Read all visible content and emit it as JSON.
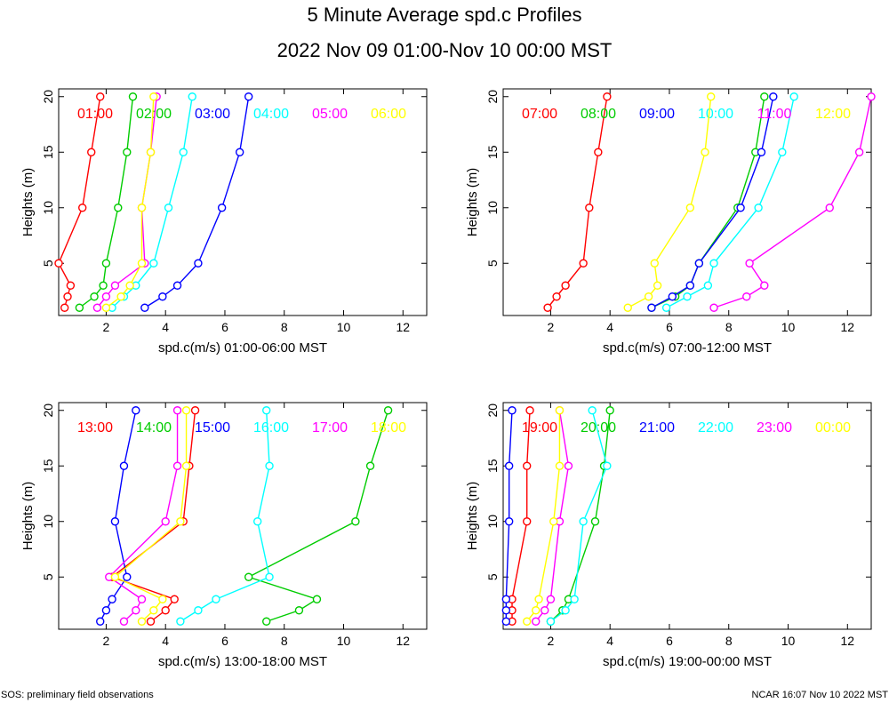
{
  "title": "5 Minute Average spd.c Profiles",
  "subtitle": "2022 Nov 09 01:00-Nov 10 00:00 MST",
  "footer_left": "SOS: preliminary field observations",
  "footer_right": "NCAR 16:07 Nov 10 2022 MST",
  "chart_data": [
    {
      "type": "line",
      "xlabel": "spd.c(m/s) 01:00-06:00 MST",
      "ylabel": "Heights (m)",
      "xlim": [
        0.4,
        12.8
      ],
      "ylim": [
        0.3,
        20.7
      ],
      "xticks": [
        2,
        4,
        6,
        8,
        10,
        12
      ],
      "yticks": [
        5,
        10,
        15,
        20
      ],
      "heights": [
        1,
        2,
        3,
        5,
        10,
        15,
        20
      ],
      "series": [
        {
          "name": "01:00",
          "color": "#ff0000",
          "values": [
            0.6,
            0.7,
            0.8,
            0.4,
            1.2,
            1.5,
            1.8
          ]
        },
        {
          "name": "02:00",
          "color": "#00cc00",
          "values": [
            1.1,
            1.6,
            1.9,
            2.0,
            2.4,
            2.7,
            2.9
          ]
        },
        {
          "name": "03:00",
          "color": "#0000ff",
          "values": [
            3.3,
            3.9,
            4.4,
            5.1,
            5.9,
            6.5,
            6.8
          ]
        },
        {
          "name": "04:00",
          "color": "#00ffff",
          "values": [
            2.2,
            2.6,
            3.0,
            3.6,
            4.1,
            4.6,
            4.9
          ]
        },
        {
          "name": "05:00",
          "color": "#ff00ff",
          "values": [
            1.7,
            2.0,
            2.3,
            3.3,
            3.2,
            3.5,
            3.7
          ]
        },
        {
          "name": "06:00",
          "color": "#ffff00",
          "values": [
            2.0,
            2.5,
            2.8,
            3.2,
            3.2,
            3.5,
            3.6
          ]
        }
      ]
    },
    {
      "type": "line",
      "xlabel": "spd.c(m/s) 07:00-12:00 MST",
      "ylabel": "Heights (m)",
      "xlim": [
        0.4,
        12.8
      ],
      "ylim": [
        0.3,
        20.7
      ],
      "xticks": [
        2,
        4,
        6,
        8,
        10,
        12
      ],
      "yticks": [
        5,
        10,
        15,
        20
      ],
      "heights": [
        1,
        2,
        3,
        5,
        10,
        15,
        20
      ],
      "series": [
        {
          "name": "07:00",
          "color": "#ff0000",
          "values": [
            1.9,
            2.2,
            2.5,
            3.1,
            3.3,
            3.6,
            3.9
          ]
        },
        {
          "name": "08:00",
          "color": "#00cc00",
          "values": [
            5.4,
            6.2,
            6.7,
            7.0,
            8.3,
            8.9,
            9.2
          ]
        },
        {
          "name": "09:00",
          "color": "#0000ff",
          "values": [
            5.4,
            6.1,
            6.7,
            7.0,
            8.4,
            9.1,
            9.5
          ]
        },
        {
          "name": "10:00",
          "color": "#00ffff",
          "values": [
            5.9,
            6.6,
            7.3,
            7.5,
            9.0,
            9.8,
            10.2
          ]
        },
        {
          "name": "11:00",
          "color": "#ff00ff",
          "values": [
            7.5,
            8.6,
            9.2,
            8.7,
            11.4,
            12.4,
            12.8
          ]
        },
        {
          "name": "12:00",
          "color": "#ffff00",
          "values": [
            4.6,
            5.3,
            5.6,
            5.5,
            6.7,
            7.2,
            7.4
          ]
        }
      ]
    },
    {
      "type": "line",
      "xlabel": "spd.c(m/s) 13:00-18:00 MST",
      "ylabel": "Heights (m)",
      "xlim": [
        0.4,
        12.8
      ],
      "ylim": [
        0.3,
        20.7
      ],
      "xticks": [
        2,
        4,
        6,
        8,
        10,
        12
      ],
      "yticks": [
        5,
        10,
        15,
        20
      ],
      "heights": [
        1,
        2,
        3,
        5,
        10,
        15,
        20
      ],
      "series": [
        {
          "name": "13:00",
          "color": "#ff0000",
          "values": [
            3.5,
            4.0,
            4.3,
            2.2,
            4.6,
            4.8,
            5.0
          ]
        },
        {
          "name": "14:00",
          "color": "#00cc00",
          "values": [
            7.4,
            8.5,
            9.1,
            6.8,
            10.4,
            10.9,
            11.5
          ]
        },
        {
          "name": "15:00",
          "color": "#0000ff",
          "values": [
            1.8,
            2.0,
            2.2,
            2.7,
            2.3,
            2.6,
            3.0
          ]
        },
        {
          "name": "16:00",
          "color": "#00ffff",
          "values": [
            4.5,
            5.1,
            5.7,
            7.5,
            7.1,
            7.5,
            7.4
          ]
        },
        {
          "name": "17:00",
          "color": "#ff00ff",
          "values": [
            2.6,
            3.0,
            3.2,
            2.1,
            4.0,
            4.4,
            4.4
          ]
        },
        {
          "name": "18:00",
          "color": "#ffff00",
          "values": [
            3.2,
            3.6,
            3.9,
            2.3,
            4.5,
            4.7,
            4.7
          ]
        }
      ]
    },
    {
      "type": "line",
      "xlabel": "spd.c(m/s) 19:00-00:00 MST",
      "ylabel": "Heights (m)",
      "xlim": [
        0.4,
        12.8
      ],
      "ylim": [
        0.3,
        20.7
      ],
      "xticks": [
        2,
        4,
        6,
        8,
        10,
        12
      ],
      "yticks": [
        5,
        10,
        15,
        20
      ],
      "heights": [
        1,
        2,
        3,
        5,
        10,
        15,
        20
      ],
      "series": [
        {
          "name": "19:00",
          "color": "#ff0000",
          "values": [
            0.7,
            0.7,
            0.7,
            null,
            1.2,
            1.2,
            1.3
          ]
        },
        {
          "name": "20:00",
          "color": "#00cc00",
          "values": [
            2.0,
            2.4,
            2.6,
            null,
            3.5,
            3.8,
            4.0
          ]
        },
        {
          "name": "21:00",
          "color": "#0000ff",
          "values": [
            0.5,
            0.5,
            0.5,
            null,
            0.6,
            0.6,
            0.7
          ]
        },
        {
          "name": "22:00",
          "color": "#00ffff",
          "values": [
            2.0,
            2.5,
            2.8,
            null,
            3.1,
            3.9,
            3.4
          ]
        },
        {
          "name": "23:00",
          "color": "#ff00ff",
          "values": [
            1.5,
            1.8,
            2.0,
            null,
            2.3,
            2.6,
            2.3
          ]
        },
        {
          "name": "00:00",
          "color": "#ffff00",
          "values": [
            1.2,
            1.5,
            1.6,
            null,
            2.1,
            2.3,
            2.3
          ]
        }
      ]
    }
  ]
}
